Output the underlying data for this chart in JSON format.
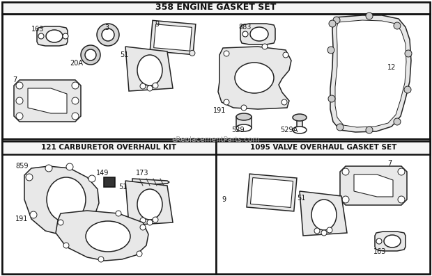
{
  "title": "358 ENGINE GASKET SET",
  "title_bottom_left": "121 CARBURETOR OVERHAUL KIT",
  "title_bottom_right": "1095 VALVE OVERHAUL GASKET SET",
  "watermark": "eReplacementParts.com",
  "bg_color": "#ffffff",
  "border_color": "#111111",
  "text_color": "#111111",
  "fill_part": "#e8e8e8",
  "fill_white": "#ffffff"
}
